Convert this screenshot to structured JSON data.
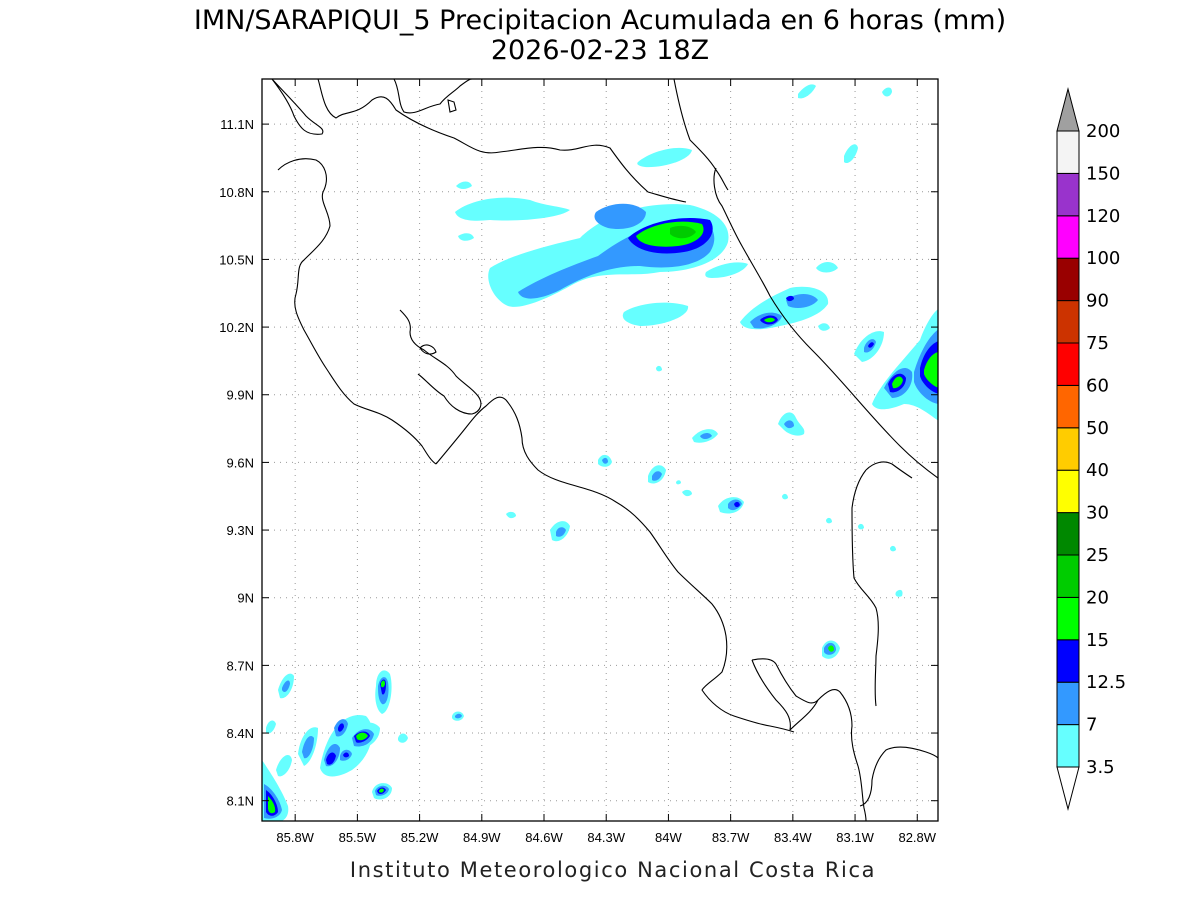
{
  "title": {
    "line1": "IMN/SARAPIQUI_5 Precipitacion Acumulada en 6 horas (mm)",
    "line2": "2026-02-23 18Z"
  },
  "footer": "Instituto Meteorologico Nacional Costa Rica",
  "map": {
    "lon_range": [
      -85.96,
      -82.7
    ],
    "lat_range": [
      8.01,
      11.3
    ],
    "lon_ticks": [
      {
        "value": -85.8,
        "label": "85.8W"
      },
      {
        "value": -85.5,
        "label": "85.5W"
      },
      {
        "value": -85.2,
        "label": "85.2W"
      },
      {
        "value": -84.9,
        "label": "84.9W"
      },
      {
        "value": -84.6,
        "label": "84.6W"
      },
      {
        "value": -84.3,
        "label": "84.3W"
      },
      {
        "value": -84.0,
        "label": "84W"
      },
      {
        "value": -83.7,
        "label": "83.7W"
      },
      {
        "value": -83.4,
        "label": "83.4W"
      },
      {
        "value": -83.1,
        "label": "83.1W"
      },
      {
        "value": -82.8,
        "label": "82.8W"
      }
    ],
    "lat_ticks": [
      {
        "value": 8.1,
        "label": "8.1N"
      },
      {
        "value": 8.4,
        "label": "8.4N"
      },
      {
        "value": 8.7,
        "label": "8.7N"
      },
      {
        "value": 9.0,
        "label": "9N"
      },
      {
        "value": 9.3,
        "label": "9.3N"
      },
      {
        "value": 9.6,
        "label": "9.6N"
      },
      {
        "value": 9.9,
        "label": "9.9N"
      },
      {
        "value": 10.2,
        "label": "10.2N"
      },
      {
        "value": 10.5,
        "label": "10.5N"
      },
      {
        "value": 10.8,
        "label": "10.8N"
      },
      {
        "value": 11.1,
        "label": "11.1N"
      }
    ],
    "grid": true
  },
  "colorbar": {
    "top_color": "#a0a0a0",
    "bottom_color": "#ffffff",
    "bins": [
      {
        "color": "#66ffff"
      },
      {
        "color": "#3399ff"
      },
      {
        "color": "#0000ff"
      },
      {
        "color": "#00ff00"
      },
      {
        "color": "#00cc00"
      },
      {
        "color": "#008800"
      },
      {
        "color": "#ffff00"
      },
      {
        "color": "#ffcc00"
      },
      {
        "color": "#ff6600"
      },
      {
        "color": "#ff0000"
      },
      {
        "color": "#cc3300"
      },
      {
        "color": "#990000"
      },
      {
        "color": "#ff00ff"
      },
      {
        "color": "#9933cc"
      },
      {
        "color": "#f4f4f4"
      }
    ],
    "labels": [
      "3.5",
      "7",
      "12.5",
      "15",
      "20",
      "25",
      "30",
      "40",
      "50",
      "60",
      "75",
      "90",
      "100",
      "120",
      "150",
      "200"
    ]
  },
  "precip_color_scale": {
    "c1": "#66ffff",
    "c2": "#3399ff",
    "c3": "#0000ff",
    "c4": "#00ff00",
    "c5": "#00cc00"
  }
}
